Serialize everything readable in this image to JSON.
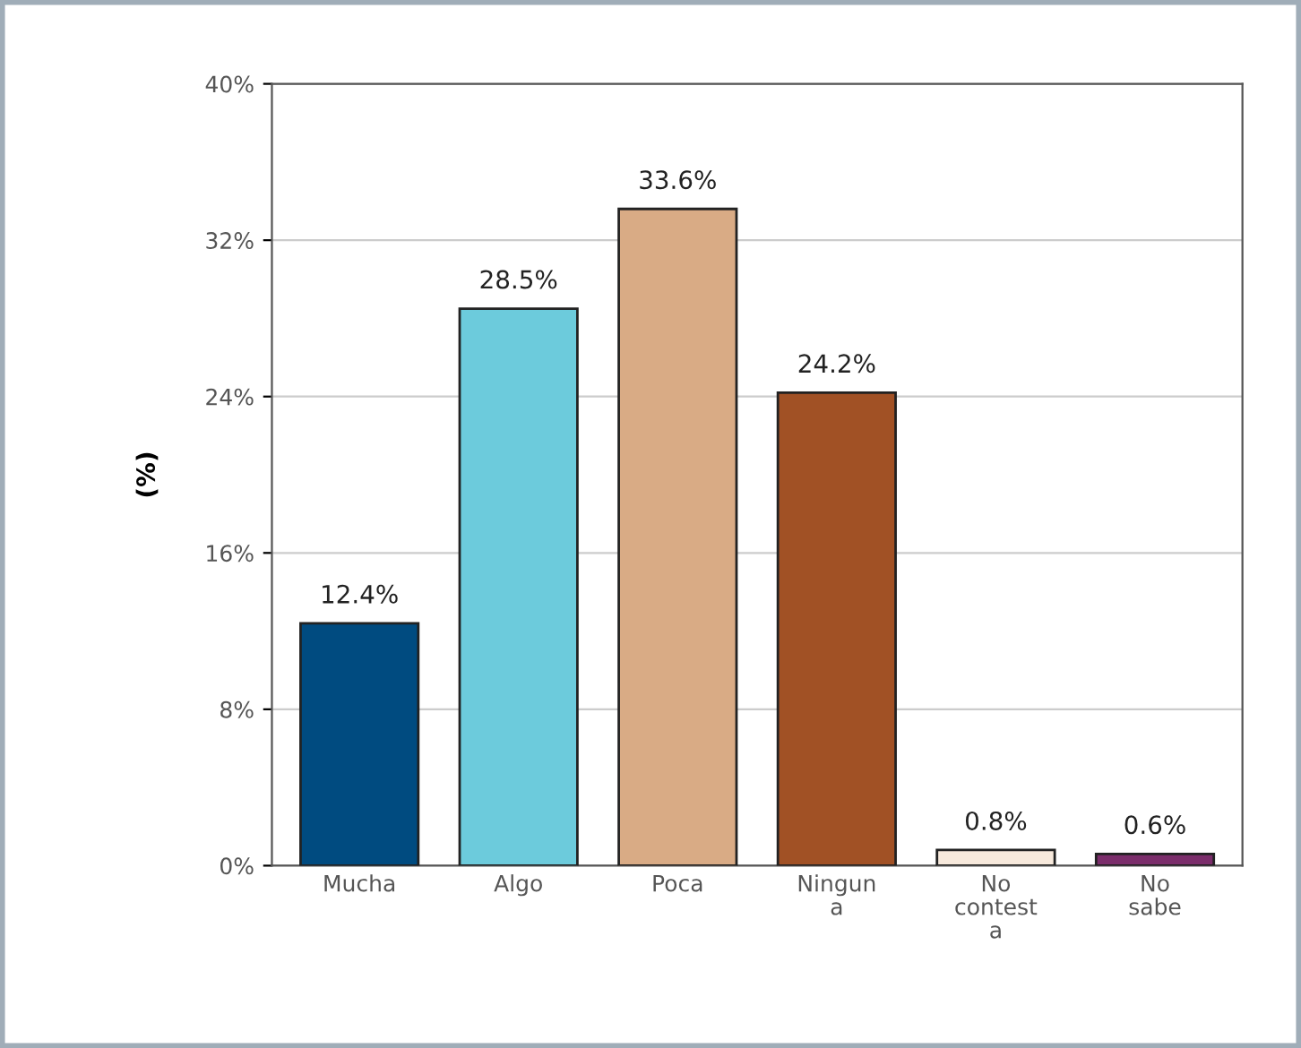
{
  "chart_data": {
    "type": "bar",
    "ylabel": "(%)",
    "categories": [
      "Mucha",
      "Algo",
      "Poca",
      "Ningun\na",
      "No\ncontest\na",
      "No\nsabe"
    ],
    "values": [
      12.4,
      28.5,
      33.6,
      24.2,
      0.8,
      0.6
    ],
    "colors": [
      "#004b80",
      "#6ccbdc",
      "#d9ab85",
      "#a15125",
      "#f7e9dc",
      "#7b2d6b"
    ],
    "value_labels": [
      "12.4%",
      "28.5%",
      "33.6%",
      "24.2%",
      "0.8%",
      "0.6%"
    ],
    "ylim": [
      0,
      40
    ],
    "yticks": [
      {
        "value": 0,
        "label": "0%"
      },
      {
        "value": 8,
        "label": "8%"
      },
      {
        "value": 16,
        "label": "16%"
      },
      {
        "value": 24,
        "label": "24%"
      },
      {
        "value": 32,
        "label": "32%"
      },
      {
        "value": 40,
        "label": "40%"
      }
    ],
    "grid": "y",
    "legend": false
  }
}
